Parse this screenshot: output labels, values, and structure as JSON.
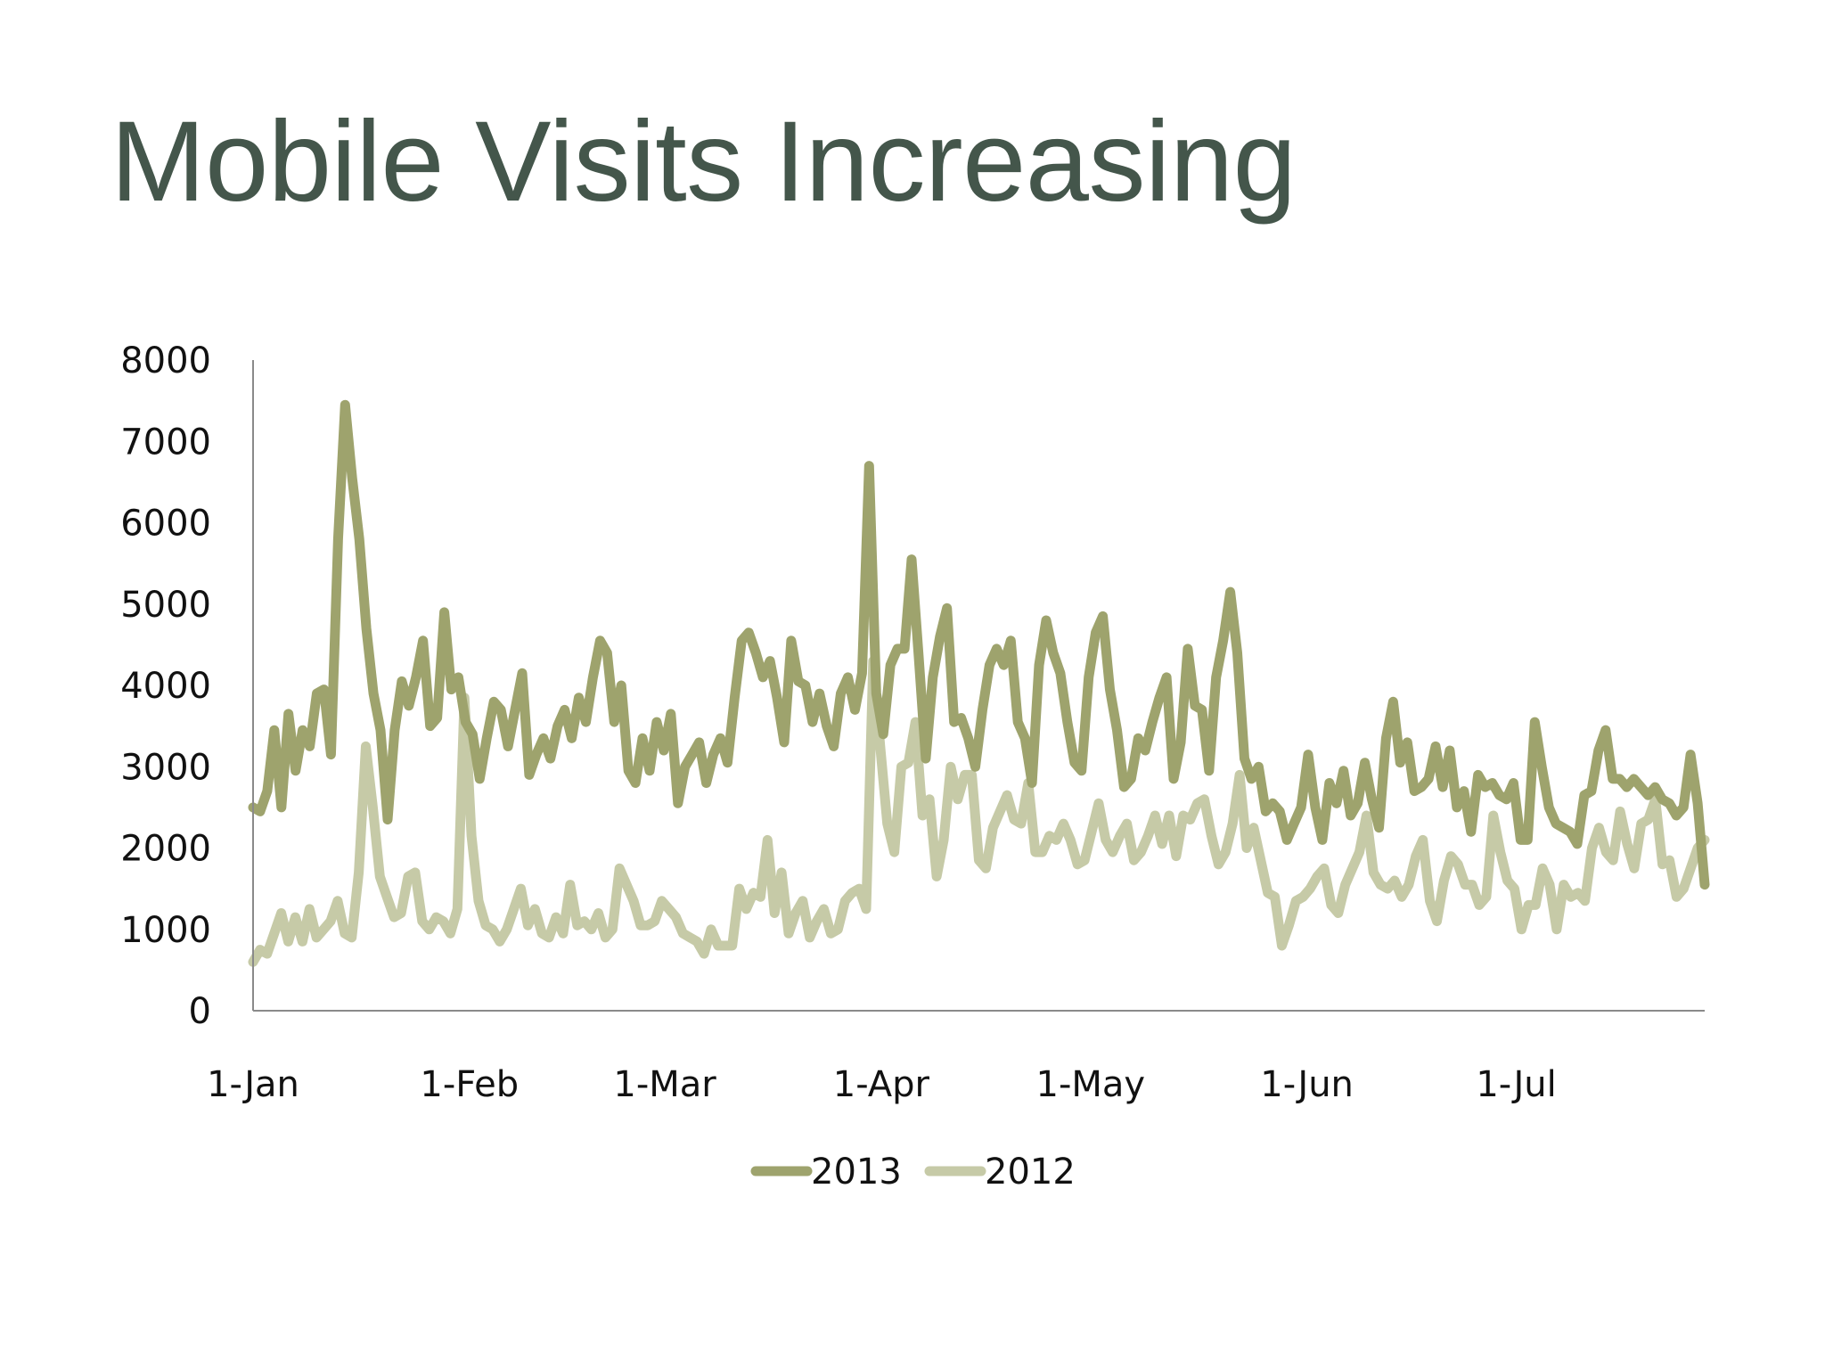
{
  "title": "Mobile Visits Increasing",
  "chart_data": {
    "type": "line",
    "title": "",
    "xlabel": "",
    "ylabel": "",
    "x_start": "1-Jan",
    "x_end": "28-Jul",
    "x_ticks": [
      "1-Jan",
      "1-Feb",
      "1-Mar",
      "1-Apr",
      "1-May",
      "1-Jun",
      "1-Jul"
    ],
    "y_ticks": [
      0,
      1000,
      2000,
      3000,
      4000,
      5000,
      6000,
      7000,
      8000
    ],
    "ylim": [
      0,
      8000
    ],
    "grid": false,
    "legend_position": "bottom",
    "series": [
      {
        "name": "2013",
        "color": "#9ea36d",
        "values": [
          2500,
          2450,
          2700,
          3450,
          2500,
          3650,
          2950,
          3450,
          3250,
          3900,
          3950,
          3150,
          5800,
          7450,
          6550,
          5800,
          4700,
          3900,
          3450,
          2350,
          3450,
          4050,
          3750,
          4100,
          4550,
          3500,
          3600,
          4900,
          3950,
          4100,
          3550,
          3400,
          2850,
          3350,
          3800,
          3700,
          3250,
          3700,
          4150,
          2900,
          3150,
          3350,
          3100,
          3500,
          3700,
          3350,
          3850,
          3550,
          4100,
          4550,
          4400,
          3550,
          4000,
          2950,
          2800,
          3350,
          2950,
          3550,
          3200,
          3650,
          2550,
          3000,
          3150,
          3300,
          2800,
          3150,
          3350,
          3050,
          3850,
          4550,
          4650,
          4400,
          4100,
          4300,
          3850,
          3300,
          4550,
          4050,
          4000,
          3550,
          3900,
          3500,
          3250,
          3900,
          4100,
          3700,
          4150,
          6700,
          3900,
          3400,
          4250,
          4450,
          4450,
          5550,
          4350,
          3100,
          4100,
          4600,
          4950,
          3550,
          3600,
          3350,
          3000,
          3700,
          4250,
          4450,
          4250,
          4550,
          3550,
          3350,
          2800,
          4250,
          4800,
          4400,
          4150,
          3550,
          3050,
          2950,
          4100,
          4650,
          4850,
          3950,
          3450,
          2750,
          2850,
          3350,
          3200,
          3550,
          3850,
          4100,
          2850,
          3300,
          4450,
          3750,
          3700,
          2950,
          4100,
          4550,
          5150,
          4400,
          3100,
          2850,
          3000,
          2450,
          2550,
          2450,
          2100,
          2300,
          2500,
          3150,
          2500,
          2100,
          2800,
          2550,
          2950,
          2400,
          2550,
          3050,
          2600,
          2250,
          3350,
          3800,
          3050,
          3300,
          2700,
          2750,
          2850,
          3250,
          2750,
          3200,
          2500,
          2700,
          2200,
          2900,
          2750,
          2800,
          2650,
          2600,
          2800,
          2100,
          2100,
          3550,
          3000,
          2500,
          2300,
          2250,
          2200,
          2050,
          2650,
          2700,
          3200,
          3450,
          2850,
          2850,
          2750,
          2850,
          2750,
          2650,
          2750,
          2600,
          2550,
          2400,
          2500,
          3150,
          2550,
          1550
        ]
      },
      {
        "name": "2012",
        "color": "#c6caa7",
        "values": [
          600,
          750,
          700,
          950,
          1200,
          850,
          1150,
          850,
          1250,
          900,
          1000,
          1100,
          1350,
          950,
          900,
          1700,
          3250,
          2500,
          1650,
          1400,
          1150,
          1200,
          1650,
          1700,
          1100,
          1000,
          1150,
          1100,
          950,
          1250,
          3850,
          2150,
          1350,
          1050,
          1000,
          850,
          1000,
          1250,
          1500,
          1050,
          1250,
          950,
          900,
          1150,
          950,
          1550,
          1050,
          1100,
          1000,
          1200,
          900,
          1000,
          1750,
          1550,
          1350,
          1050,
          1050,
          1100,
          1350,
          1250,
          1150,
          950,
          900,
          850,
          700,
          1000,
          800,
          800,
          800,
          1500,
          1250,
          1450,
          1400,
          2100,
          1200,
          1700,
          950,
          1200,
          1350,
          900,
          1100,
          1250,
          950,
          1000,
          1350,
          1450,
          1500,
          1250,
          4300,
          3250,
          2300,
          1950,
          3000,
          3050,
          3550,
          2400,
          2600,
          1650,
          2100,
          3000,
          2600,
          2900,
          2900,
          1850,
          1750,
          2250,
          2450,
          2650,
          2350,
          2300,
          2800,
          1950,
          1950,
          2150,
          2100,
          2300,
          2100,
          1800,
          1850,
          2200,
          2550,
          2100,
          1950,
          2150,
          2300,
          1850,
          1950,
          2150,
          2400,
          2050,
          2400,
          1900,
          2400,
          2350,
          2550,
          2600,
          2150,
          1800,
          1950,
          2300,
          2900,
          2000,
          2250,
          1850,
          1450,
          1400,
          800,
          1050,
          1350,
          1400,
          1500,
          1650,
          1750,
          1300,
          1200,
          1550,
          1750,
          1950,
          2400,
          1700,
          1550,
          1500,
          1600,
          1400,
          1550,
          1900,
          2100,
          1350,
          1100,
          1600,
          1900,
          1800,
          1550,
          1550,
          1300,
          1400,
          2400,
          1950,
          1600,
          1500,
          1000,
          1300,
          1300,
          1750,
          1550,
          1000,
          1550,
          1400,
          1450,
          1350,
          2000,
          2250,
          1950,
          1850,
          2450,
          2050,
          1750,
          2300,
          2350,
          2600,
          1800,
          1850,
          1400,
          1500,
          1750,
          2000,
          2100
        ]
      }
    ]
  }
}
